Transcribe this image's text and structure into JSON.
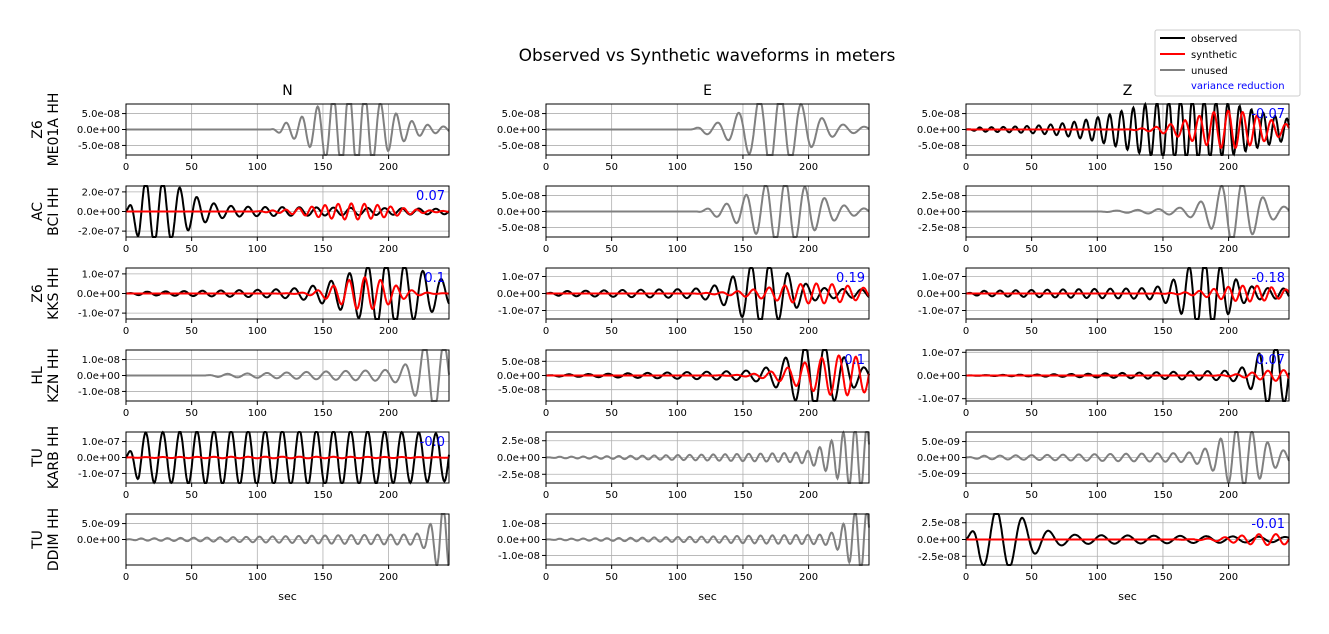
{
  "chart_data": {
    "type": "line",
    "title": "Observed vs Synthetic waveforms in meters",
    "columns": [
      "N",
      "E",
      "Z"
    ],
    "rows": [
      {
        "network": "Z6",
        "station": "ME01A HH"
      },
      {
        "network": "AC",
        "station": "BCI HH"
      },
      {
        "network": "Z6",
        "station": "KKS HH"
      },
      {
        "network": "HL",
        "station": "KZN HH"
      },
      {
        "network": "TU",
        "station": "KARB HH"
      },
      {
        "network": "TU",
        "station": "DDIM HH"
      }
    ],
    "xlabel": "sec",
    "xlim": [
      0,
      246
    ],
    "xticks": [
      0,
      50,
      100,
      150,
      200
    ],
    "legend": {
      "placement": "top-right",
      "entries": [
        {
          "label": "observed",
          "color": "#000000"
        },
        {
          "label": "synthetic",
          "color": "#ff0000"
        },
        {
          "label": "unused",
          "color": "#808080"
        },
        {
          "label": "variance reduction",
          "color": "#0000ff"
        }
      ]
    },
    "panels": [
      {
        "row": 0,
        "col": 0,
        "used": false,
        "vr": null,
        "ylim": [
          -8e-08,
          8e-08
        ],
        "yticks": [
          5e-08,
          0,
          -5e-08
        ],
        "yticklabels": [
          "5.0e-08",
          "0.0e+00",
          "-5.0e-08"
        ],
        "obs": {
          "amp": 1.1e-07,
          "center": 172,
          "sigma": 22,
          "onset": 110,
          "period": 12,
          "spread": 55
        }
      },
      {
        "row": 0,
        "col": 1,
        "used": false,
        "vr": null,
        "ylim": [
          -8e-08,
          8e-08
        ],
        "yticks": [
          5e-08,
          0,
          -5e-08
        ],
        "yticklabels": [
          "5.0e-08",
          "0.0e+00",
          "-5.0e-08"
        ],
        "obs": {
          "amp": 1e-07,
          "center": 175,
          "sigma": 20,
          "onset": 110,
          "period": 16,
          "spread": 55
        }
      },
      {
        "row": 0,
        "col": 2,
        "used": true,
        "vr": "-0.07",
        "ylim": [
          -8e-08,
          8e-08
        ],
        "yticks": [
          5e-08,
          0,
          -5e-08
        ],
        "yticklabels": [
          "5.0e-08",
          "0.0e+00",
          "-5.0e-08"
        ],
        "obs": {
          "amp": 8.5e-08,
          "center": 170,
          "sigma": 45,
          "onset": 0,
          "period": 9,
          "spread": 120
        },
        "syn": {
          "amp": 5e-08,
          "center": 200,
          "sigma": 28,
          "onset": 120,
          "period": 11
        }
      },
      {
        "row": 1,
        "col": 0,
        "used": true,
        "vr": "0.07",
        "ylim": [
          -2.6e-07,
          2.6e-07
        ],
        "yticks": [
          2e-07,
          0,
          -2e-07
        ],
        "yticklabels": [
          "2.0e-07",
          "0.0e+00",
          "-2.0e-07"
        ],
        "obs": {
          "amp": 2.8e-07,
          "center": 22,
          "sigma": 22,
          "onset": 0,
          "period": 13,
          "spread": 200
        },
        "syn": {
          "amp": 7e-08,
          "center": 172,
          "sigma": 30,
          "onset": 95,
          "period": 10
        }
      },
      {
        "row": 1,
        "col": 1,
        "used": false,
        "vr": null,
        "ylim": [
          -8e-08,
          8e-08
        ],
        "yticks": [
          5e-08,
          0,
          -5e-08
        ],
        "yticklabels": [
          "5.0e-08",
          "0.0e+00",
          "-5.0e-08"
        ],
        "obs": {
          "amp": 8.5e-08,
          "center": 180,
          "sigma": 22,
          "onset": 115,
          "period": 15,
          "spread": 55
        }
      },
      {
        "row": 1,
        "col": 2,
        "used": false,
        "vr": null,
        "ylim": [
          -4e-08,
          4e-08
        ],
        "yticks": [
          2.5e-08,
          0,
          -2.5e-08
        ],
        "yticklabels": [
          "2.5e-08",
          "0.0e+00",
          "-2.5e-08"
        ],
        "obs": {
          "amp": 4.2e-08,
          "center": 205,
          "sigma": 15,
          "onset": 100,
          "period": 16,
          "spread": 50
        }
      },
      {
        "row": 2,
        "col": 0,
        "used": true,
        "vr": "0.1",
        "ylim": [
          -1.3e-07,
          1.3e-07
        ],
        "yticks": [
          1e-07,
          0,
          -1e-07
        ],
        "yticklabels": [
          "1.0e-07",
          "0.0e+00",
          "-1.0e-07"
        ],
        "obs": {
          "amp": 1.4e-07,
          "center": 200,
          "sigma": 28,
          "onset": 0,
          "period": 14,
          "spread": 130
        },
        "syn": {
          "amp": 7e-08,
          "center": 182,
          "sigma": 20,
          "onset": 100,
          "period": 12
        }
      },
      {
        "row": 2,
        "col": 1,
        "used": true,
        "vr": "0.19",
        "ylim": [
          -1.5e-07,
          1.5e-07
        ],
        "yticks": [
          1e-07,
          0,
          -1e-07
        ],
        "yticklabels": [
          "1.0e-07",
          "0.0e+00",
          "-1.0e-07"
        ],
        "obs": {
          "amp": 1.6e-07,
          "center": 165,
          "sigma": 18,
          "onset": 0,
          "period": 14,
          "spread": 130
        },
        "syn": {
          "amp": 5e-08,
          "center": 205,
          "sigma": 35,
          "onset": 110,
          "period": 12
        }
      },
      {
        "row": 2,
        "col": 2,
        "used": true,
        "vr": "-0.18",
        "ylim": [
          -1.5e-07,
          1.5e-07
        ],
        "yticks": [
          1e-07,
          0,
          -1e-07
        ],
        "yticklabels": [
          "1.0e-07",
          "0.0e+00",
          "-1.0e-07"
        ],
        "obs": {
          "amp": 1.8e-07,
          "center": 182,
          "sigma": 15,
          "onset": 0,
          "period": 12,
          "spread": 140
        },
        "syn": {
          "amp": 4e-08,
          "center": 215,
          "sigma": 25,
          "onset": 120,
          "period": 11
        }
      },
      {
        "row": 3,
        "col": 0,
        "used": false,
        "vr": null,
        "ylim": [
          -1.6e-08,
          1.6e-08
        ],
        "yticks": [
          1e-08,
          0,
          -1e-08
        ],
        "yticklabels": [
          "1.0e-08",
          "0.0e+00",
          "-1.0e-08"
        ],
        "obs": {
          "amp": 2e-08,
          "center": 235,
          "sigma": 12,
          "onset": 60,
          "period": 15,
          "spread": 100
        }
      },
      {
        "row": 3,
        "col": 1,
        "used": true,
        "vr": "0.1",
        "ylim": [
          -9e-08,
          9e-08
        ],
        "yticks": [
          5e-08,
          0,
          -5e-08
        ],
        "yticklabels": [
          "5.0e-08",
          "0.0e+00",
          "-5.0e-08"
        ],
        "obs": {
          "amp": 1e-07,
          "center": 205,
          "sigma": 18,
          "onset": 0,
          "period": 15,
          "spread": 110
        },
        "syn": {
          "amp": 6e-08,
          "center": 225,
          "sigma": 30,
          "onset": 0,
          "period": 13
        }
      },
      {
        "row": 3,
        "col": 2,
        "used": true,
        "vr": "0.07",
        "ylim": [
          -1.1e-07,
          1.1e-07
        ],
        "yticks": [
          1e-07,
          0,
          -1e-07
        ],
        "yticklabels": [
          "1.0e-07",
          "0.0e+00",
          "-1.0e-07"
        ],
        "obs": {
          "amp": 1.2e-07,
          "center": 235,
          "sigma": 12,
          "onset": 0,
          "period": 13,
          "spread": 100
        },
        "syn": {
          "amp": 2e-08,
          "center": 240,
          "sigma": 20,
          "onset": 150,
          "period": 12
        }
      },
      {
        "row": 4,
        "col": 0,
        "used": true,
        "vr": "-0.0",
        "ylim": [
          -1.6e-07,
          1.6e-07
        ],
        "yticks": [
          1e-07,
          0,
          -1e-07
        ],
        "yticklabels": [
          "1.0e-07",
          "0.0e+00",
          "-1.0e-07"
        ],
        "obs": {
          "amp": 1.5e-07,
          "center": 120,
          "sigma": 200,
          "onset": 0,
          "period": 13,
          "spread": 300
        },
        "syn": {
          "amp": 4e-09,
          "center": 120,
          "sigma": 100,
          "onset": 0,
          "period": 13
        }
      },
      {
        "row": 4,
        "col": 1,
        "used": false,
        "vr": null,
        "ylim": [
          -3.8e-08,
          3.8e-08
        ],
        "yticks": [
          2.5e-08,
          0,
          -2.5e-08
        ],
        "yticklabels": [
          "2.5e-08",
          "0.0e+00",
          "-2.5e-08"
        ],
        "obs": {
          "amp": 4e-08,
          "center": 240,
          "sigma": 18,
          "onset": 0,
          "period": 9,
          "spread": 120
        }
      },
      {
        "row": 4,
        "col": 2,
        "used": false,
        "vr": null,
        "ylim": [
          -8e-09,
          8e-09
        ],
        "yticks": [
          5e-09,
          0,
          -5e-09
        ],
        "yticklabels": [
          "5.0e-09",
          "0.0e+00",
          "-5.0e-09"
        ],
        "obs": {
          "amp": 8e-09,
          "center": 210,
          "sigma": 15,
          "onset": 0,
          "period": 12,
          "spread": 140
        }
      },
      {
        "row": 5,
        "col": 0,
        "used": false,
        "vr": null,
        "ylim": [
          -8e-09,
          8e-09
        ],
        "yticks": [
          5e-09,
          0
        ],
        "yticklabels": [
          "5.0e-09",
          "0.0e+00"
        ],
        "obs": {
          "amp": 9e-09,
          "center": 243,
          "sigma": 8,
          "onset": 0,
          "period": 10,
          "spread": 130
        }
      },
      {
        "row": 5,
        "col": 1,
        "used": false,
        "vr": null,
        "ylim": [
          -1.6e-08,
          1.6e-08
        ],
        "yticks": [
          1e-08,
          0,
          -1e-08
        ],
        "yticklabels": [
          "1.0e-08",
          "0.0e+00",
          "-1.0e-08"
        ],
        "obs": {
          "amp": 1.7e-08,
          "center": 240,
          "sigma": 10,
          "onset": 0,
          "period": 9,
          "spread": 120
        }
      },
      {
        "row": 5,
        "col": 2,
        "used": true,
        "vr": "-0.01",
        "ylim": [
          -3.8e-08,
          3.8e-08
        ],
        "yticks": [
          2.5e-08,
          0,
          -2.5e-08
        ],
        "yticklabels": [
          "2.5e-08",
          "0.0e+00",
          "-2.5e-08"
        ],
        "obs": {
          "amp": 3.8e-08,
          "center": 25,
          "sigma": 20,
          "onset": 0,
          "period": 20,
          "spread": 200
        },
        "syn": {
          "amp": 7e-09,
          "center": 230,
          "sigma": 25,
          "onset": 150,
          "period": 13
        }
      }
    ]
  }
}
